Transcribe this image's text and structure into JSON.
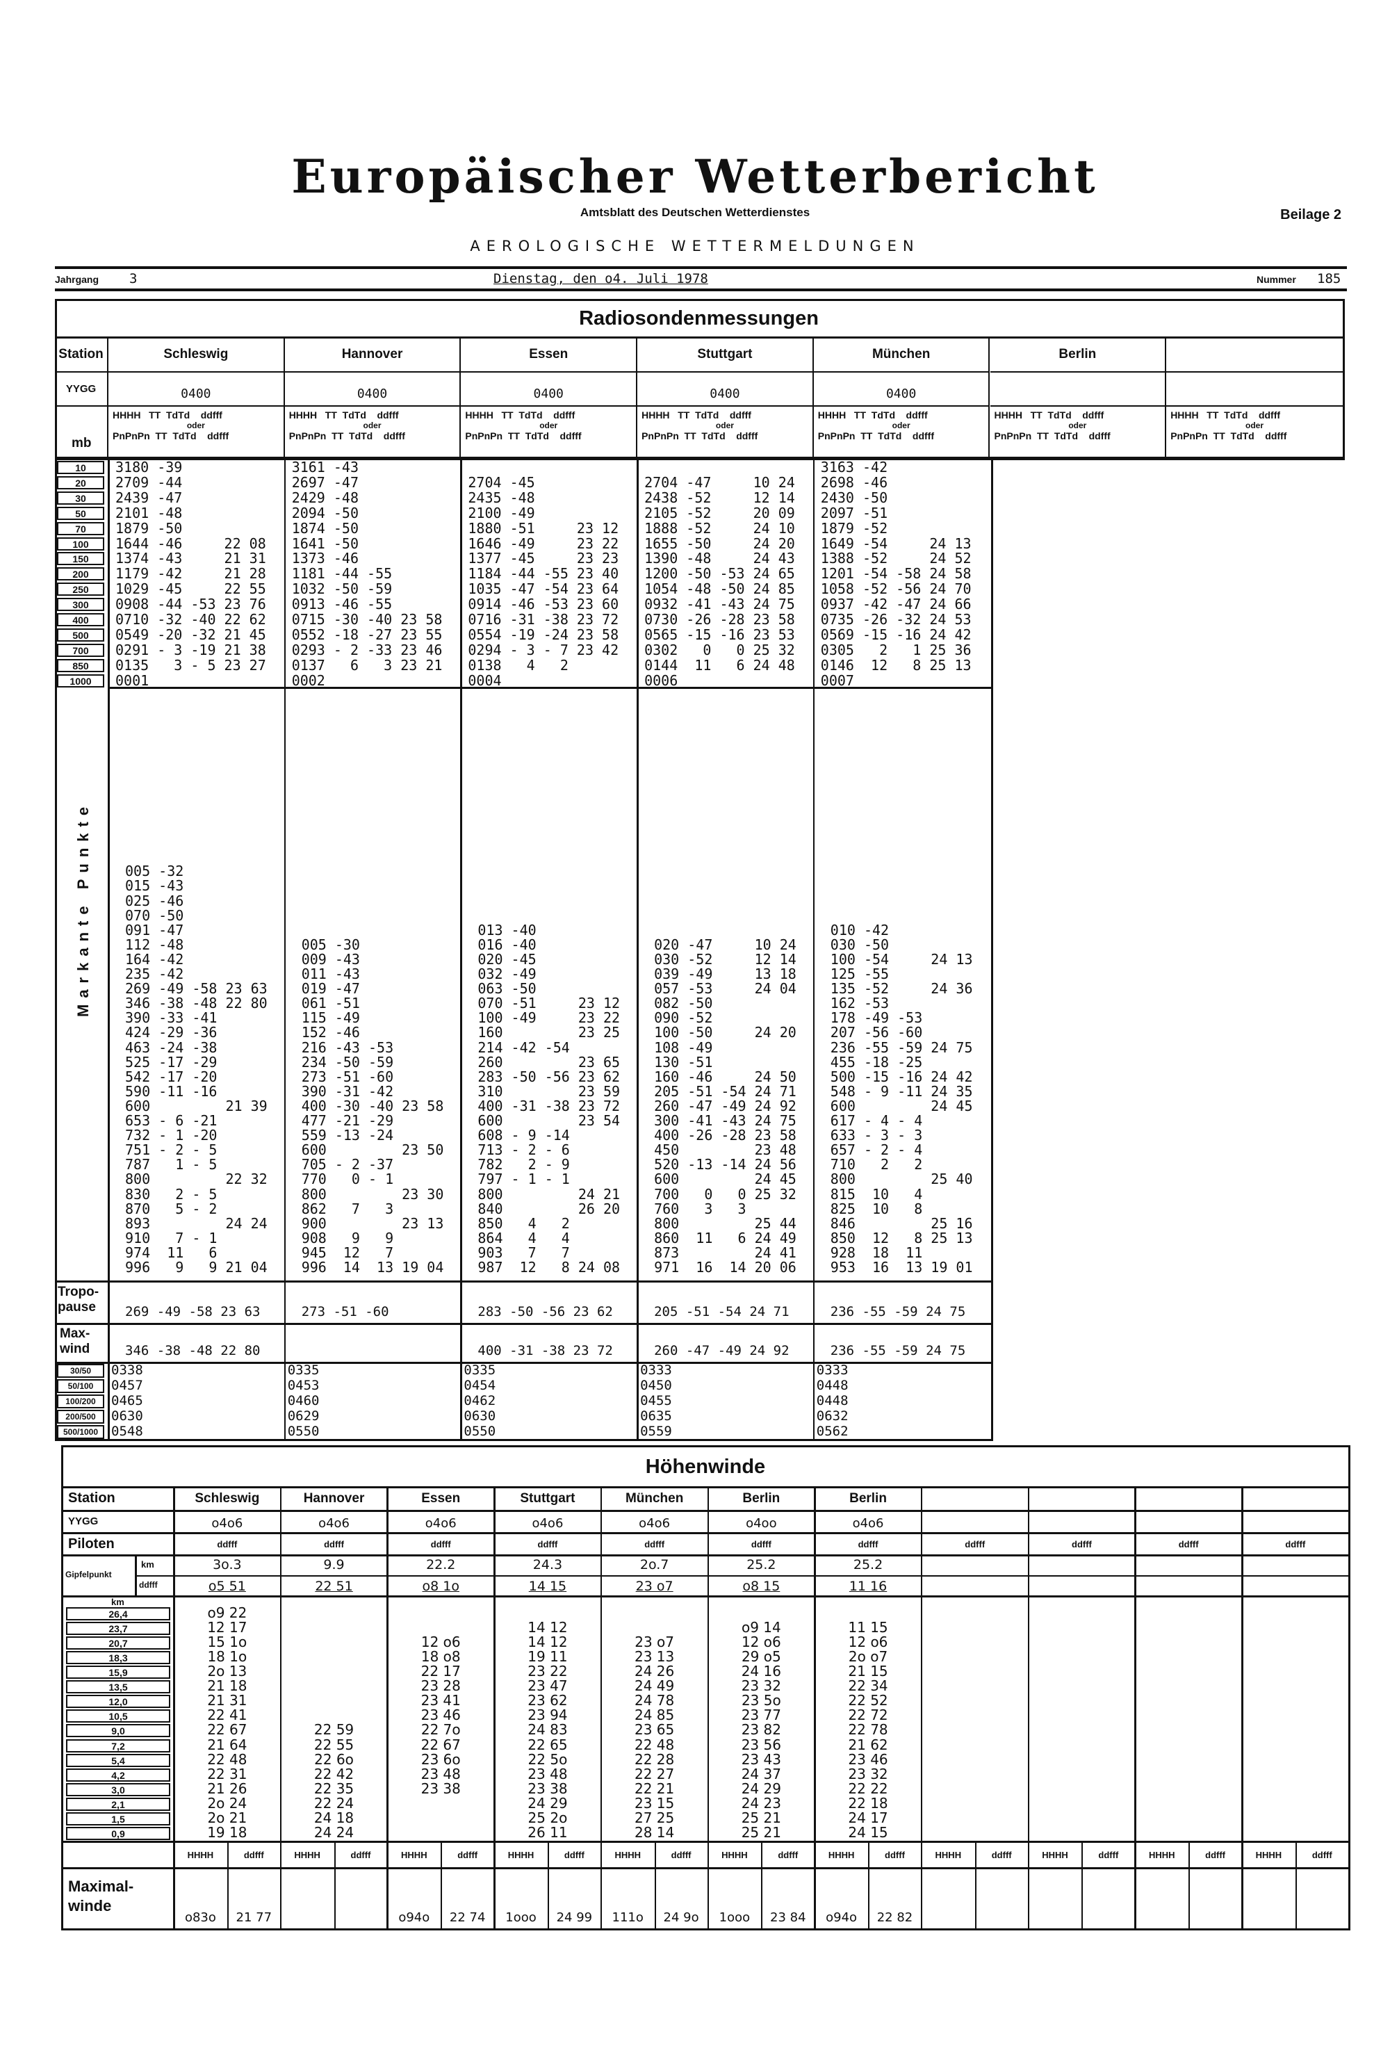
{
  "masthead": {
    "title": "Europäischer Wetterbericht",
    "subtitle": "Amtsblatt des Deutschen Wetterdienstes",
    "supplement": "Beilage 2",
    "section": "AEROLOGISCHE WETTERMELDUNGEN",
    "volume_label": "Jahrgang",
    "volume": "3",
    "date": "Dienstag, den o4. Juli 1978",
    "number_label": "Nummer",
    "number": "185"
  },
  "radiosonde": {
    "title": "Radiosondenmessungen",
    "station_label": "Station",
    "yygg_label": "YYGG",
    "mb_label": "mb",
    "col_header": {
      "line1": "HHHH   TT  TdTd    ddfff",
      "oder": "oder",
      "line2": "PnPnPn  TT  TdTd    ddfff"
    },
    "levels": [
      "10",
      "20",
      "30",
      "50",
      "70",
      "100",
      "150",
      "200",
      "250",
      "300",
      "400",
      "500",
      "700",
      "850",
      "1000"
    ],
    "marked_label": "Markante Punkte",
    "tropopause_label": "Tropo-\npause",
    "maxwind_label": "Max-\nwind",
    "thickness_labels": [
      "30/50",
      "50/100",
      "100/200",
      "200/500",
      "500/1000"
    ],
    "stations": [
      {
        "name": "Schleswig",
        "yygg": "0400",
        "standard": [
          "3180 -39",
          "2709 -44",
          "2439 -47",
          "2101 -48",
          "1879 -50",
          "1644 -46     22 08",
          "1374 -43     21 31",
          "1179 -42     21 28",
          "1029 -45     22 55",
          "0908 -44 -53 23 76",
          "0710 -32 -40 22 62",
          "0549 -20 -32 21 45",
          "0291 - 3 -19 21 38",
          "0135   3 - 5 23 27",
          "0001"
        ],
        "marked": [
          "005 -32",
          "015 -43",
          "025 -46",
          "070 -50",
          "091 -47",
          "112 -48",
          "164 -42",
          "235 -42",
          "269 -49 -58 23 63",
          "346 -38 -48 22 80",
          "390 -33 -41",
          "424 -29 -36",
          "463 -24 -38",
          "525 -17 -29",
          "542 -17 -20",
          "590 -11 -16",
          "600         21 39",
          "653 - 6 -21",
          "732 - 1 -20",
          "751 - 2 - 5",
          "787   1 - 5",
          "800         22 32",
          "830   2 - 5",
          "870   5 - 2",
          "893         24 24",
          "910   7 - 1",
          "974  11   6",
          "996   9   9 21 04"
        ],
        "tropopause": "269 -49 -58 23 63",
        "maxwind": "346 -38 -48 22 80",
        "thickness": [
          "0338",
          "0457",
          "0465",
          "0630",
          "0548"
        ]
      },
      {
        "name": "Hannover",
        "yygg": "0400",
        "standard": [
          "3161 -43",
          "2697 -47",
          "2429 -48",
          "2094 -50",
          "1874 -50",
          "1641 -50",
          "1373 -46",
          "1181 -44 -55",
          "1032 -50 -59",
          "0913 -46 -55",
          "0715 -30 -40 23 58",
          "0552 -18 -27 23 55",
          "0293 - 2 -33 23 46",
          "0137   6   3 23 21",
          "0002"
        ],
        "marked": [
          "005 -30",
          "009 -43",
          "011 -43",
          "019 -47",
          "061 -51",
          "115 -49",
          "152 -46",
          "216 -43 -53",
          "234 -50 -59",
          "273 -51 -60",
          "390 -31 -42",
          "400 -30 -40 23 58",
          "477 -21 -29",
          "559 -13 -24",
          "600         23 50",
          "705 - 2 -37",
          "770   0 - 1",
          "800         23 30",
          "862   7   3",
          "900         23 13",
          "908   9   9",
          "945  12   7",
          "996  14  13 19 04"
        ],
        "tropopause": "273 -51 -60",
        "maxwind": "",
        "thickness": [
          "0335",
          "0453",
          "0460",
          "0629",
          "0550"
        ]
      },
      {
        "name": "Essen",
        "yygg": "0400",
        "standard": [
          "",
          "2704 -45",
          "2435 -48",
          "2100 -49",
          "1880 -51     23 12",
          "1646 -49     23 22",
          "1377 -45     23 23",
          "1184 -44 -55 23 40",
          "1035 -47 -54 23 64",
          "0914 -46 -53 23 60",
          "0716 -31 -38 23 72",
          "0554 -19 -24 23 58",
          "0294 - 3 - 7 23 42",
          "0138   4   2",
          "0004"
        ],
        "marked": [
          "013 -40",
          "016 -40",
          "020 -45",
          "032 -49",
          "063 -50",
          "070 -51     23 12",
          "100 -49     23 22",
          "160         23 25",
          "214 -42 -54",
          "260         23 65",
          "283 -50 -56 23 62",
          "310         23 59",
          "400 -31 -38 23 72",
          "600         23 54",
          "608 - 9 -14",
          "713 - 2 - 6",
          "782   2 - 9",
          "797 - 1 - 1",
          "800         24 21",
          "840         26 20",
          "850   4   2",
          "864   4   4",
          "903   7   7",
          "987  12   8 24 08"
        ],
        "tropopause": "283 -50 -56 23 62",
        "maxwind": "400 -31 -38 23 72",
        "thickness": [
          "0335",
          "0454",
          "0462",
          "0630",
          "0550"
        ]
      },
      {
        "name": "Stuttgart",
        "yygg": "0400",
        "standard": [
          "",
          "2704 -47     10 24",
          "2438 -52     12 14",
          "2105 -52     20 09",
          "1888 -52     24 10",
          "1655 -50     24 20",
          "1390 -48     24 43",
          "1200 -50 -53 24 65",
          "1054 -48 -50 24 85",
          "0932 -41 -43 24 75",
          "0730 -26 -28 23 58",
          "0565 -15 -16 23 53",
          "0302   0   0 25 32",
          "0144  11   6 24 48",
          "0006"
        ],
        "marked": [
          "020 -47     10 24",
          "030 -52     12 14",
          "039 -49     13 18",
          "057 -53     24 04",
          "082 -50",
          "090 -52",
          "100 -50     24 20",
          "108 -49",
          "130 -51",
          "160 -46     24 50",
          "205 -51 -54 24 71",
          "260 -47 -49 24 92",
          "300 -41 -43 24 75",
          "400 -26 -28 23 58",
          "450         23 48",
          "520 -13 -14 24 56",
          "600         24 45",
          "700   0   0 25 32",
          "760   3   3",
          "800         25 44",
          "860  11   6 24 49",
          "873         24 41",
          "971  16  14 20 06"
        ],
        "tropopause": "205 -51 -54 24 71",
        "maxwind": "260 -47 -49 24 92",
        "thickness": [
          "0333",
          "0450",
          "0455",
          "0635",
          "0559"
        ]
      },
      {
        "name": "München",
        "yygg": "0400",
        "standard": [
          "3163 -42",
          "2698 -46",
          "2430 -50",
          "2097 -51",
          "1879 -52",
          "1649 -54     24 13",
          "1388 -52     24 52",
          "1201 -54 -58 24 58",
          "1058 -52 -56 24 70",
          "0937 -42 -47 24 66",
          "0735 -26 -32 24 53",
          "0569 -15 -16 24 42",
          "0305   2   1 25 36",
          "0146  12   8 25 13",
          "0007"
        ],
        "marked": [
          "010 -42",
          "030 -50",
          "100 -54     24 13",
          "125 -55",
          "135 -52     24 36",
          "162 -53",
          "178 -49 -53",
          "207 -56 -60",
          "236 -55 -59 24 75",
          "455 -18 -25",
          "500 -15 -16 24 42",
          "548 - 9 -11 24 35",
          "600         24 45",
          "617 - 4 - 4",
          "633 - 3 - 3",
          "657 - 2 - 4",
          "710   2   2",
          "800         25 40",
          "815  10   4",
          "825  10   8",
          "846         25 16",
          "850  12   8 25 13",
          "928  18  11",
          "953  16  13 19 01"
        ],
        "tropopause": "236 -55 -59 24 75",
        "maxwind": "236 -55 -59 24 75",
        "thickness": [
          "0333",
          "0448",
          "0448",
          "0632",
          "0562"
        ]
      },
      {
        "name": "Berlin",
        "yygg": ""
      },
      {
        "name": "",
        "yygg": ""
      }
    ]
  },
  "hoehenwinde": {
    "title": "Höhenwinde",
    "station_label": "Station",
    "yygg_label": "YYGG",
    "piloten_label": "Piloten",
    "gipfel_label": "Gipfelpunkt",
    "gipfel_km_label": "km",
    "gipfel_ddfff_label": "ddfff",
    "km_label": "km",
    "maxwind_label": "Maximal-\nwinde",
    "hhhh_label": "HHHH",
    "ddfff_label": "ddfff",
    "levels": [
      "26,4",
      "23,7",
      "20,7",
      "18,3",
      "15,9",
      "13,5",
      "12,0",
      "10,5",
      "9,0",
      "7,2",
      "5,4",
      "4,2",
      "3,0",
      "2,1",
      "1,5",
      "0,9"
    ],
    "stations": [
      {
        "name": "Schleswig",
        "yygg": "o4o6",
        "piloten": "ddfff",
        "gipfel_km": "3o.3",
        "gipfel_ddfff": "o5 51",
        "winds": [
          "o9 22",
          "12 17",
          "15 1o",
          "18 1o",
          "2o 13",
          "21 18",
          "21 31",
          "22 41",
          "22 67",
          "21 64",
          "22 48",
          "22 31",
          "21 26",
          "2o 24",
          "2o 21",
          "19 18"
        ],
        "max_hhhh": "o83o",
        "max_ddfff": "21 77"
      },
      {
        "name": "Hannover",
        "yygg": "o4o6",
        "piloten": "ddfff",
        "gipfel_km": "9.9",
        "gipfel_ddfff": "22 51",
        "winds": [
          "",
          "",
          "",
          "",
          "",
          "",
          "",
          "",
          "22 59",
          "22 55",
          "22 6o",
          "22 42",
          "22 35",
          "22 24",
          "24 18",
          "24 24"
        ],
        "max_hhhh": "",
        "max_ddfff": ""
      },
      {
        "name": "Essen",
        "yygg": "o4o6",
        "piloten": "ddfff",
        "gipfel_km": "22.2",
        "gipfel_ddfff": "o8 1o",
        "winds": [
          "",
          "",
          "12 o6",
          "18 o8",
          "22 17",
          "23 28",
          "23 41",
          "23 46",
          "22 7o",
          "22 67",
          "23 6o",
          "23 48",
          "23 38",
          "",
          "",
          ""
        ],
        "max_hhhh": "o94o",
        "max_ddfff": "22 74"
      },
      {
        "name": "Stuttgart",
        "yygg": "o4o6",
        "piloten": "ddfff",
        "gipfel_km": "24.3",
        "gipfel_ddfff": "14 15",
        "winds": [
          "",
          "14 12",
          "14 12",
          "19 11",
          "23 22",
          "23 47",
          "23 62",
          "23 94",
          "24 83",
          "22 65",
          "22 5o",
          "23 48",
          "23 38",
          "24 29",
          "25 2o",
          "26 11"
        ],
        "max_hhhh": "1ooo",
        "max_ddfff": "24 99"
      },
      {
        "name": "München",
        "yygg": "o4o6",
        "piloten": "ddfff",
        "gipfel_km": "2o.7",
        "gipfel_ddfff": "23 o7",
        "winds": [
          "",
          "",
          "23 o7",
          "23 13",
          "24 26",
          "24 49",
          "24 78",
          "24 85",
          "23 65",
          "22 48",
          "22 28",
          "22 27",
          "22 21",
          "23 15",
          "27 25",
          "28 14"
        ],
        "max_hhhh": "111o",
        "max_ddfff": "24 9o"
      },
      {
        "name": "Berlin",
        "yygg": "o4oo",
        "piloten": "ddfff",
        "gipfel_km": "25.2",
        "gipfel_ddfff": "o8 15",
        "winds": [
          "",
          "o9 14",
          "12 o6",
          "29 o5",
          "24 16",
          "23 32",
          "23 5o",
          "23 77",
          "23 82",
          "23 56",
          "23 43",
          "24 37",
          "24 29",
          "24 23",
          "25 21",
          "25 21"
        ],
        "max_hhhh": "1ooo",
        "max_ddfff": "23 84"
      },
      {
        "name": "Berlin",
        "yygg": "o4o6",
        "piloten": "ddfff",
        "gipfel_km": "25.2",
        "gipfel_ddfff": "11 16",
        "winds": [
          "",
          "11 15",
          "12 o6",
          "2o o7",
          "21 15",
          "22 34",
          "22 52",
          "22 72",
          "22 78",
          "21 62",
          "23 46",
          "23 32",
          "22 22",
          "22 18",
          "24 17",
          "24 15"
        ],
        "max_hhhh": "o94o",
        "max_ddfff": "22 82"
      },
      {
        "name": "",
        "yygg": "",
        "piloten": "ddfff",
        "gipfel_km": "",
        "gipfel_ddfff": "",
        "winds": [],
        "max_hhhh": "",
        "max_ddfff": ""
      },
      {
        "name": "",
        "yygg": "",
        "piloten": "ddfff",
        "gipfel_km": "",
        "gipfel_ddfff": "",
        "winds": [],
        "max_hhhh": "",
        "max_ddfff": ""
      },
      {
        "name": "",
        "yygg": "",
        "piloten": "ddfff",
        "gipfel_km": "",
        "gipfel_ddfff": "",
        "winds": [],
        "max_hhhh": "",
        "max_ddfff": ""
      },
      {
        "name": "",
        "yygg": "",
        "piloten": "ddfff",
        "gipfel_km": "",
        "gipfel_ddfff": "",
        "winds": [],
        "max_hhhh": "",
        "max_ddfff": ""
      }
    ]
  }
}
